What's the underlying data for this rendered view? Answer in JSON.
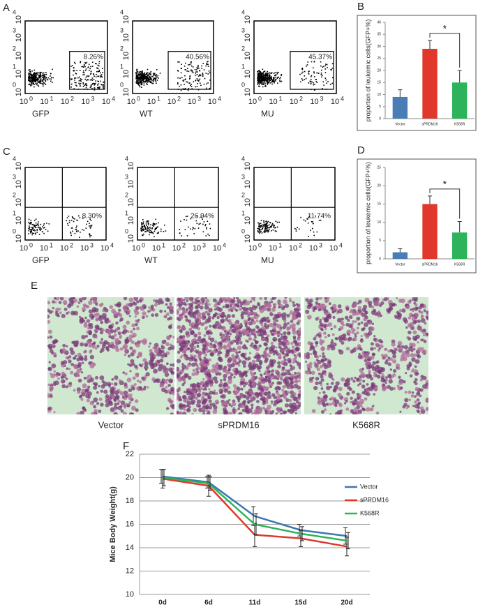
{
  "panels": {
    "A": "A",
    "B": "B",
    "C": "C",
    "D": "D",
    "E": "E",
    "F": "F"
  },
  "flow": {
    "axis_base": "10",
    "exponents": [
      "0",
      "1",
      "2",
      "3",
      "4"
    ],
    "rows": [
      {
        "plots": [
          {
            "label": "GFP",
            "percent": "8.26%"
          },
          {
            "label": "WT",
            "percent": "40.56%"
          },
          {
            "label": "MU",
            "percent": "45.37%"
          }
        ]
      },
      {
        "plots": [
          {
            "label": "GFP",
            "percent": "8.30%"
          },
          {
            "label": "WT",
            "percent": "26.94%"
          },
          {
            "label": "MU",
            "percent": "11.74%"
          }
        ]
      }
    ]
  },
  "histology": {
    "labels": [
      "Vector",
      "sPRDM16",
      "K568R"
    ]
  },
  "chart_data": [
    {
      "type": "bar",
      "ylabel": "proportion of leukemic cells(GFP+%)",
      "categories": [
        "Vector",
        "sPRDM16",
        "K568R"
      ],
      "values": [
        9,
        29,
        15
      ],
      "errors": [
        3,
        3.5,
        5
      ],
      "colors": [
        "#4a7db5",
        "#e0392c",
        "#2db35a"
      ],
      "ylim": [
        0,
        40
      ],
      "yticks": [
        0,
        5,
        10,
        15,
        20,
        25,
        30,
        35,
        40
      ],
      "annotation": "*"
    },
    {
      "type": "bar",
      "ylabel": "proportion of leukemic cells(GFP+%)",
      "categories": [
        "Vector",
        "sPRDM16",
        "K568R"
      ],
      "values": [
        1.8,
        15,
        7.2
      ],
      "errors": [
        1,
        2.2,
        3
      ],
      "colors": [
        "#4a7db5",
        "#e0392c",
        "#2db35a"
      ],
      "ylim": [
        0,
        25
      ],
      "yticks": [
        0,
        5,
        10,
        15,
        20,
        25
      ],
      "annotation": "*"
    },
    {
      "type": "line",
      "ylabel": "Mice Body Weight(g)",
      "categories": [
        "0d",
        "6d",
        "11d",
        "15d",
        "20d"
      ],
      "series": [
        {
          "name": "Vector",
          "color": "#3b78b0",
          "values": [
            20.1,
            19.6,
            16.7,
            15.5,
            15.0
          ],
          "errors": [
            0.6,
            0.5,
            0.8,
            0.5,
            0.7
          ]
        },
        {
          "name": "sPRDM16",
          "color": "#e0392c",
          "values": [
            19.9,
            19.3,
            15.1,
            14.8,
            14.1
          ],
          "errors": [
            0.8,
            0.9,
            1.0,
            0.7,
            0.8
          ]
        },
        {
          "name": "K568R",
          "color": "#2db35a",
          "values": [
            20.0,
            19.5,
            16.0,
            15.2,
            14.6
          ],
          "errors": [
            0.7,
            0.6,
            0.9,
            0.6,
            0.7
          ]
        }
      ],
      "ylim": [
        10,
        22
      ],
      "yticks": [
        10,
        12,
        14,
        16,
        18,
        20,
        22
      ],
      "grid": true
    }
  ]
}
